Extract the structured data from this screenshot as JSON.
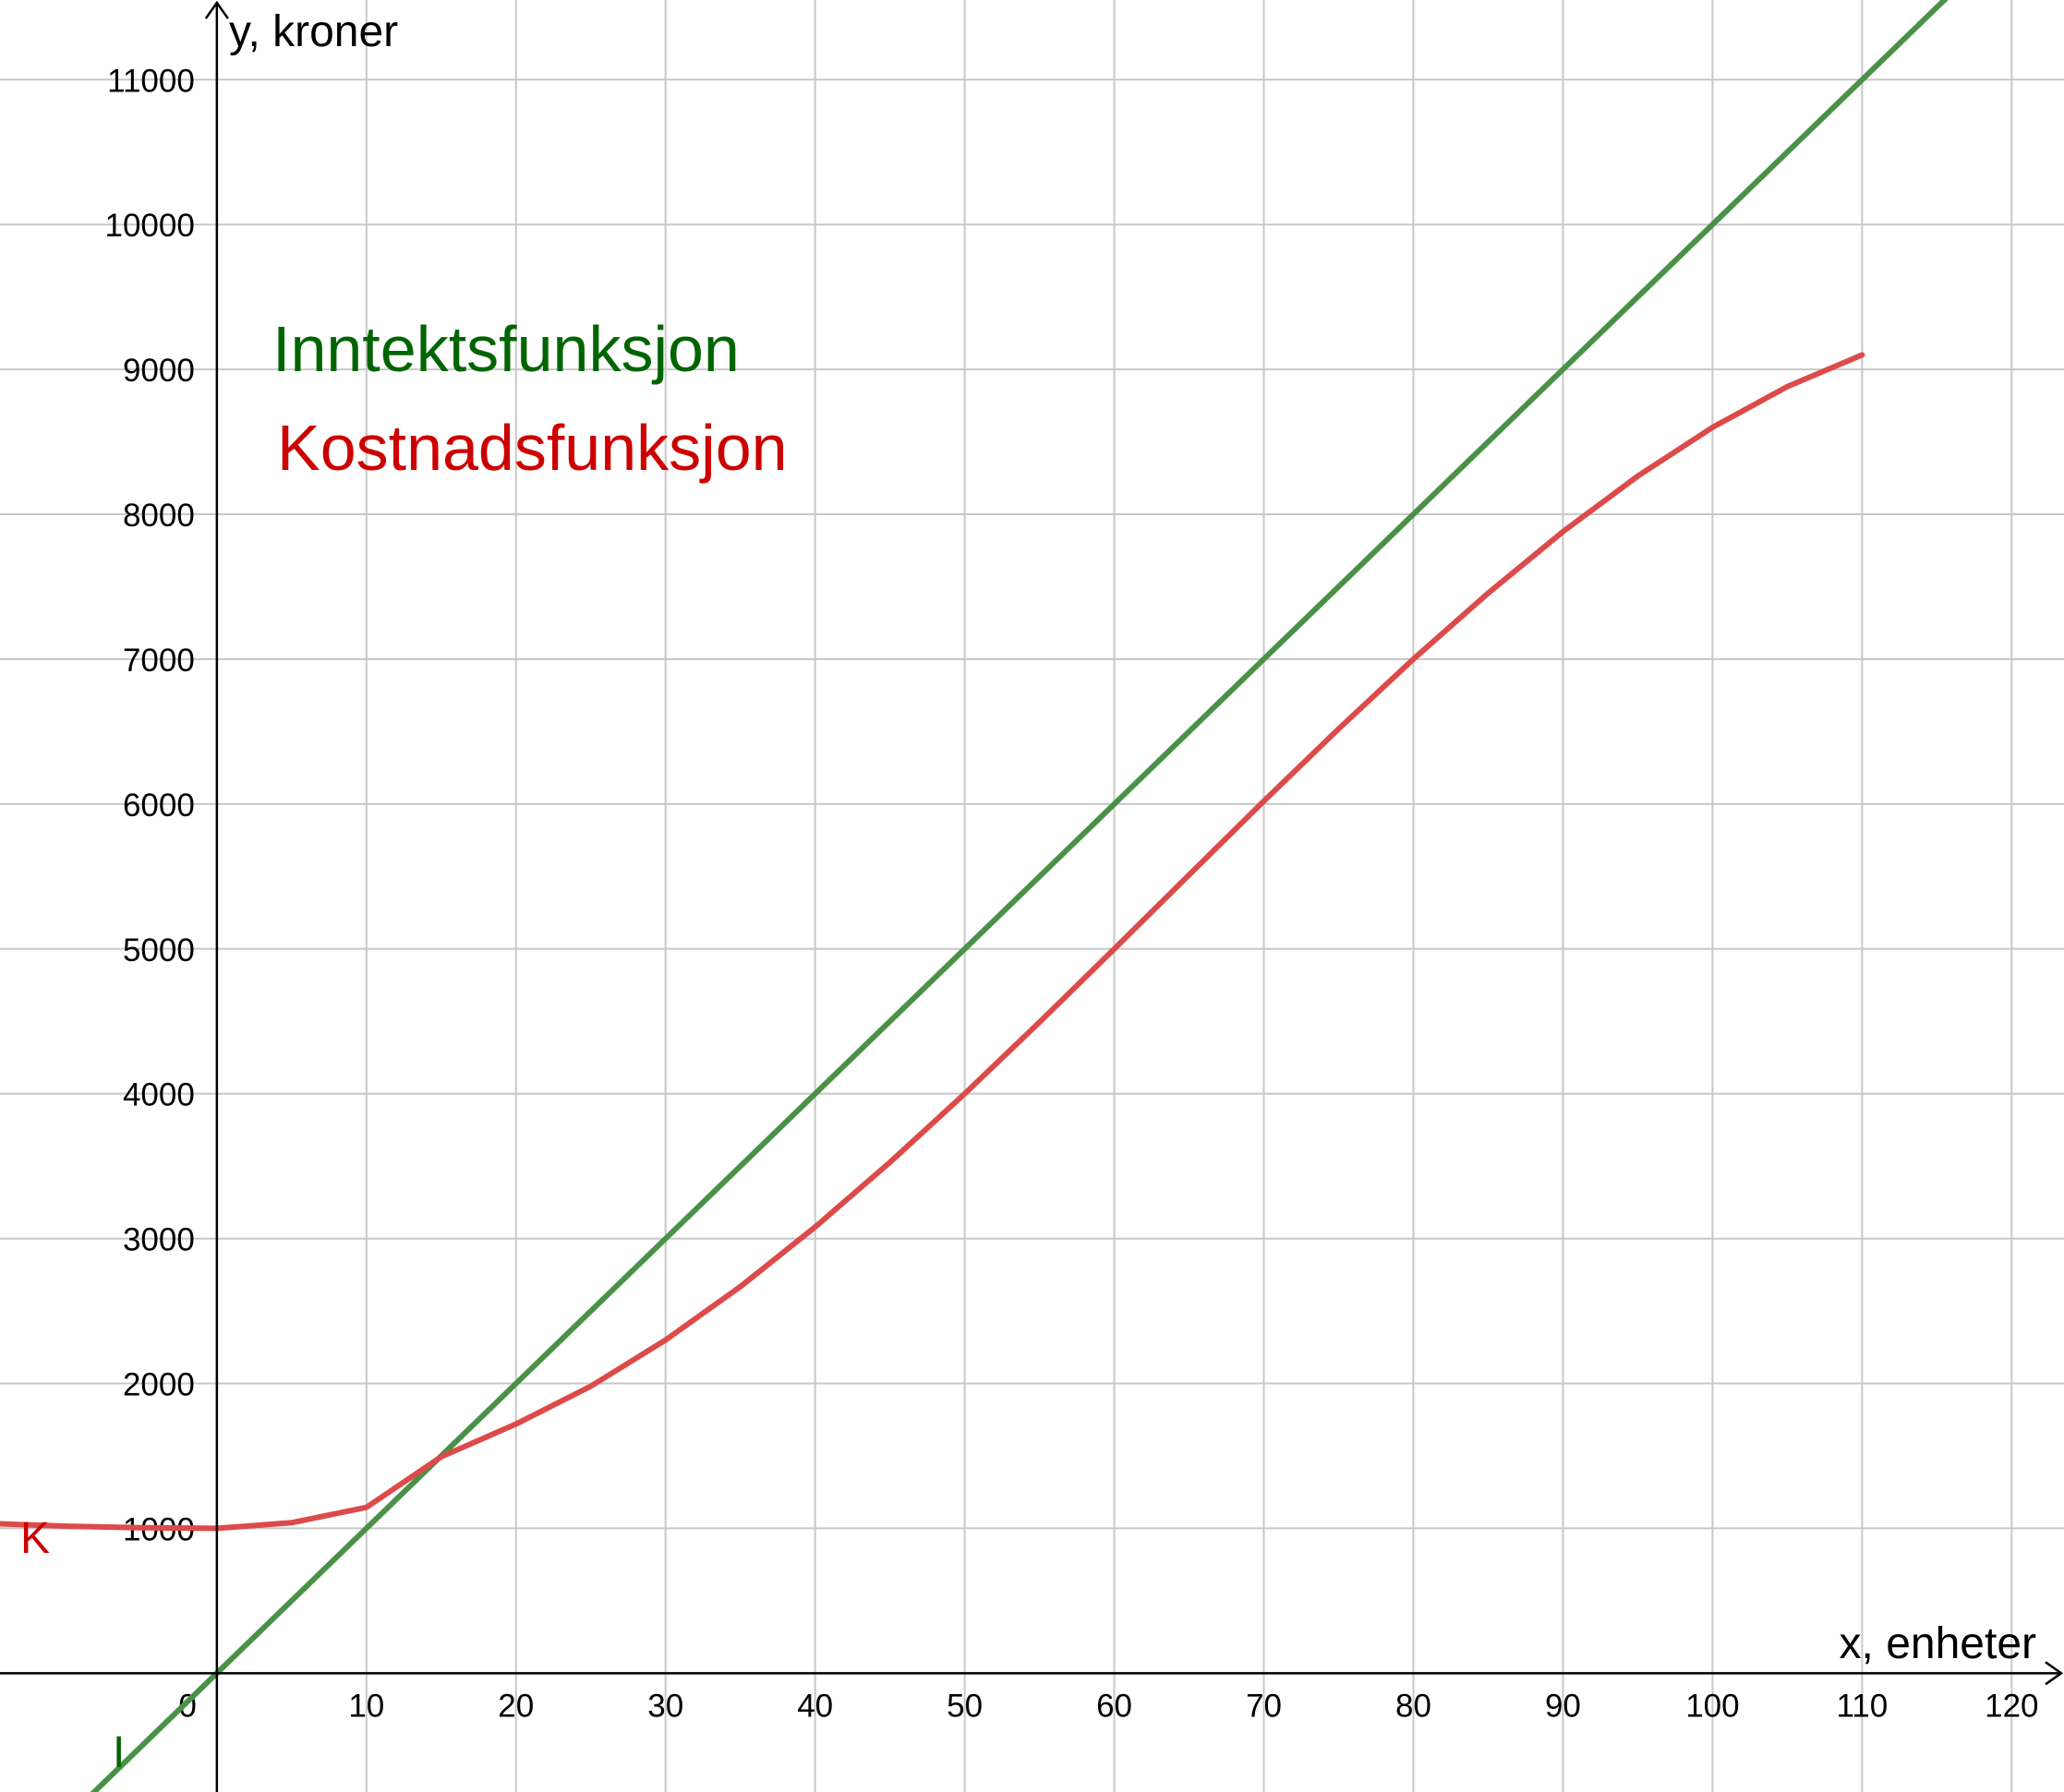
{
  "chart_data": {
    "type": "line",
    "title": "",
    "xlabel": "x, enheter",
    "ylabel": "y, kroner",
    "xlim": [
      -14.5,
      123.5
    ],
    "ylim": [
      -820,
      11550
    ],
    "grid": true,
    "x_ticks": [
      0,
      10,
      20,
      30,
      40,
      50,
      60,
      70,
      80,
      90,
      100,
      110,
      120
    ],
    "x_tick_labels": [
      "0",
      "10",
      "20",
      "30",
      "40",
      "50",
      "60",
      "70",
      "80",
      "90",
      "100",
      "110",
      "120"
    ],
    "y_ticks": [
      1000,
      2000,
      3000,
      4000,
      5000,
      6000,
      7000,
      8000,
      9000,
      10000,
      11000
    ],
    "y_tick_labels": [
      "1000",
      "2000",
      "3000",
      "4000",
      "5000",
      "6000",
      "7000",
      "8000",
      "9000",
      "10000",
      "11000"
    ],
    "legend": {
      "placement": "top-left",
      "entries": [
        {
          "text": "Inntektsfunksjon",
          "color": "#006400"
        },
        {
          "text": "Kostnadsfunksjon",
          "color": "#cc0000"
        }
      ]
    },
    "series": [
      {
        "name": "I",
        "color": "#4a9148",
        "x": [
          -10,
          0,
          10,
          20,
          30,
          40,
          50,
          60,
          70,
          80,
          90,
          100,
          110,
          116
        ],
        "y": [
          -1000,
          0,
          1000,
          2000,
          3000,
          4000,
          5000,
          6000,
          7000,
          8000,
          9000,
          10000,
          11000,
          11600
        ]
      },
      {
        "name": "K",
        "color": "#dd4a4a",
        "x": [
          -14.5,
          -10,
          -5,
          0,
          5,
          10,
          15,
          20,
          25,
          30,
          35,
          40,
          45,
          50,
          55,
          60,
          65,
          70,
          75,
          80,
          85,
          90,
          95,
          100,
          105,
          110
        ],
        "y": [
          1031.5,
          1015,
          1003.75,
          1000,
          1038.75,
          1145,
          1493.75,
          1720,
          1981.25,
          2300,
          2668.75,
          3080,
          3526.25,
          4000,
          4493.75,
          5000,
          5511.25,
          6020,
          6518.75,
          7000,
          7456.25,
          7880,
          8263.75,
          8600,
          8881.25,
          9100
        ]
      }
    ]
  }
}
